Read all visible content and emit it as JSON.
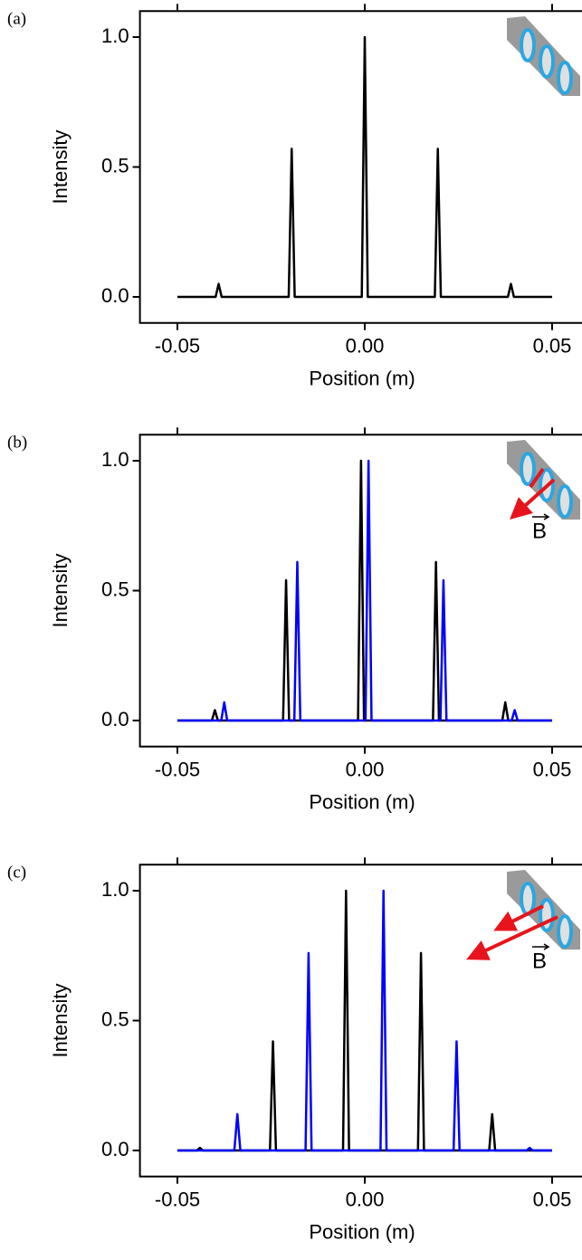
{
  "chart_data": [
    {
      "type": "line",
      "label": "(a)",
      "xlabel": "Position (m)",
      "ylabel": "Intensity",
      "xlim": [
        -0.06,
        0.06
      ],
      "ylim": [
        -0.1,
        1.1
      ],
      "xticks": [
        {
          "value": -0.05,
          "label": "-0.05"
        },
        {
          "value": 0,
          "label": "0.00"
        },
        {
          "value": 0.05,
          "label": "0.05"
        }
      ],
      "yticks": [
        {
          "value": 0,
          "label": "0.0"
        },
        0.5,
        {
          "value": 1,
          "label": "1.0"
        }
      ],
      "series": [
        {
          "color": "#000000",
          "x": [
            -0.05,
            -0.0398,
            -0.039,
            -0.0382,
            -0.0203,
            -0.0195,
            -0.0187,
            -0.0008,
            0,
            0.0008,
            0.0187,
            0.0195,
            0.0203,
            0.0382,
            0.039,
            0.0398,
            0.05
          ],
          "values": [
            0,
            0,
            0.05,
            0,
            0,
            0.57,
            0,
            0,
            1.0,
            0,
            0,
            0.57,
            0,
            0,
            0.05,
            0,
            0
          ]
        }
      ]
    },
    {
      "type": "line",
      "label": "(b)",
      "xlabel": "Position (m)",
      "ylabel": "Intensity",
      "annotation": "B",
      "xlim": [
        -0.06,
        0.06
      ],
      "ylim": [
        -0.1,
        1.1
      ],
      "xticks": [
        {
          "value": -0.05,
          "label": "-0.05"
        },
        {
          "value": 0,
          "label": "0.00"
        },
        {
          "value": 0.05,
          "label": "0.05"
        }
      ],
      "yticks": [
        {
          "value": 0,
          "label": "0.0"
        },
        0.5,
        {
          "value": 1,
          "label": "1.0"
        }
      ],
      "series": [
        {
          "color": "#000000",
          "x": [
            -0.05,
            -0.0408,
            -0.04,
            -0.0392,
            -0.0218,
            -0.021,
            -0.0202,
            -0.0018,
            -0.001,
            -0.0002,
            0.0182,
            0.019,
            0.0198,
            0.0367,
            0.0375,
            0.0383,
            0.05
          ],
          "values": [
            0,
            0,
            0.04,
            0,
            0,
            0.54,
            0,
            0,
            1.0,
            0,
            0,
            0.61,
            0,
            0,
            0.07,
            0,
            0
          ]
        },
        {
          "color": "#0000ff",
          "x": [
            -0.05,
            -0.0383,
            -0.0375,
            -0.0367,
            -0.0188,
            -0.018,
            -0.0172,
            0.0002,
            0.001,
            0.0018,
            0.0202,
            0.021,
            0.0218,
            0.0392,
            0.04,
            0.0408,
            0.05
          ],
          "values": [
            0,
            0,
            0.07,
            0,
            0,
            0.61,
            0,
            0,
            1.0,
            0,
            0,
            0.54,
            0,
            0,
            0.04,
            0,
            0
          ]
        }
      ]
    },
    {
      "type": "line",
      "label": "(c)",
      "xlabel": "Position (m)",
      "ylabel": "Intensity",
      "annotation": "B",
      "xlim": [
        -0.06,
        0.06
      ],
      "ylim": [
        -0.1,
        1.1
      ],
      "xticks": [
        {
          "value": -0.05,
          "label": "-0.05"
        },
        {
          "value": 0,
          "label": "0.00"
        },
        {
          "value": 0.05,
          "label": "0.05"
        }
      ],
      "yticks": [
        {
          "value": 0,
          "label": "0.0"
        },
        0.5,
        {
          "value": 1,
          "label": "1.0"
        }
      ],
      "series": [
        {
          "color": "#000000",
          "x": [
            -0.05,
            -0.0448,
            -0.044,
            -0.0432,
            -0.0253,
            -0.0245,
            -0.0237,
            -0.0058,
            -0.005,
            -0.0042,
            0.0142,
            0.015,
            0.0158,
            0.0332,
            0.034,
            0.0348,
            0.05
          ],
          "values": [
            0,
            0,
            0.01,
            0,
            0,
            0.42,
            0,
            0,
            1.0,
            0,
            0,
            0.76,
            0,
            0,
            0.14,
            0,
            0
          ]
        },
        {
          "color": "#0000ff",
          "x": [
            -0.05,
            -0.0348,
            -0.034,
            -0.0332,
            -0.0158,
            -0.015,
            -0.0142,
            0.0042,
            0.005,
            0.0058,
            0.0237,
            0.0245,
            0.0253,
            0.0432,
            0.044,
            0.0448,
            0.05
          ],
          "values": [
            0,
            0,
            0.14,
            0,
            0,
            0.76,
            0,
            0,
            1.0,
            0,
            0,
            0.42,
            0,
            0,
            0.01,
            0,
            0
          ]
        }
      ]
    }
  ]
}
